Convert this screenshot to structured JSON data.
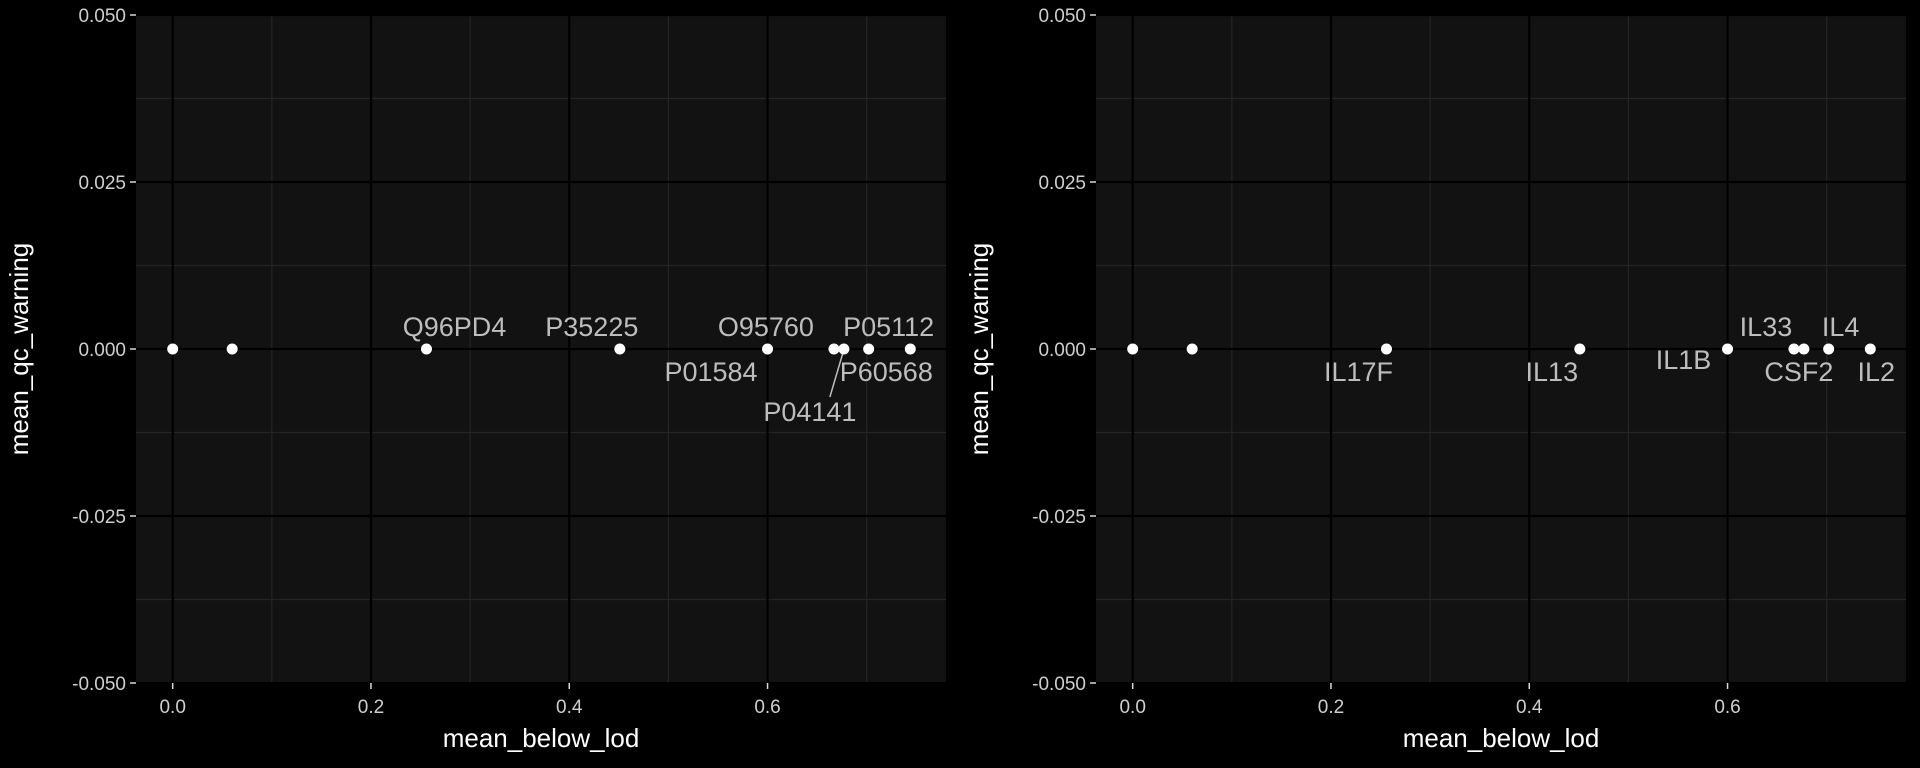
{
  "chart_data": [
    {
      "type": "scatter",
      "xlabel": "mean_below_lod",
      "ylabel": "mean_qc_warning",
      "xlim": [
        -0.037,
        0.78
      ],
      "ylim": [
        -0.05,
        0.05
      ],
      "x_ticks": [
        0.0,
        0.2,
        0.4,
        0.6
      ],
      "x_tick_labels": [
        "0.0",
        "0.2",
        "0.4",
        "0.6"
      ],
      "y_ticks": [
        -0.05,
        -0.025,
        0.0,
        0.025,
        0.05
      ],
      "y_tick_labels": [
        "-0.050",
        "-0.025",
        "0.000",
        "0.025",
        "0.050"
      ],
      "grid": true,
      "points": [
        {
          "x": 0.0,
          "y": 0,
          "label": ""
        },
        {
          "x": 0.06,
          "y": 0,
          "label": ""
        },
        {
          "x": 0.256,
          "y": 0,
          "label": "Q96PD4"
        },
        {
          "x": 0.451,
          "y": 0,
          "label": "P35225"
        },
        {
          "x": 0.6,
          "y": 0,
          "label": "P01584"
        },
        {
          "x": 0.667,
          "y": 0,
          "label": "O95760"
        },
        {
          "x": 0.677,
          "y": 0,
          "label": "P04141"
        },
        {
          "x": 0.702,
          "y": 0,
          "label": "P05112"
        },
        {
          "x": 0.744,
          "y": 0,
          "label": "P60568"
        }
      ]
    },
    {
      "type": "scatter",
      "xlabel": "mean_below_lod",
      "ylabel": "mean_qc_warning",
      "xlim": [
        -0.037,
        0.78
      ],
      "ylim": [
        -0.05,
        0.05
      ],
      "x_ticks": [
        0.0,
        0.2,
        0.4,
        0.6
      ],
      "x_tick_labels": [
        "0.0",
        "0.2",
        "0.4",
        "0.6"
      ],
      "y_ticks": [
        -0.05,
        -0.025,
        0.0,
        0.025,
        0.05
      ],
      "y_tick_labels": [
        "-0.050",
        "-0.025",
        "0.000",
        "0.025",
        "0.050"
      ],
      "grid": true,
      "points": [
        {
          "x": 0.0,
          "y": 0,
          "label": ""
        },
        {
          "x": 0.06,
          "y": 0,
          "label": ""
        },
        {
          "x": 0.256,
          "y": 0,
          "label": "IL17F"
        },
        {
          "x": 0.451,
          "y": 0,
          "label": "IL13"
        },
        {
          "x": 0.6,
          "y": 0,
          "label": "IL1B"
        },
        {
          "x": 0.667,
          "y": 0,
          "label": "IL33"
        },
        {
          "x": 0.677,
          "y": 0,
          "label": "CSF2"
        },
        {
          "x": 0.702,
          "y": 0,
          "label": "IL4"
        },
        {
          "x": 0.744,
          "y": 0,
          "label": "IL2"
        }
      ]
    }
  ]
}
